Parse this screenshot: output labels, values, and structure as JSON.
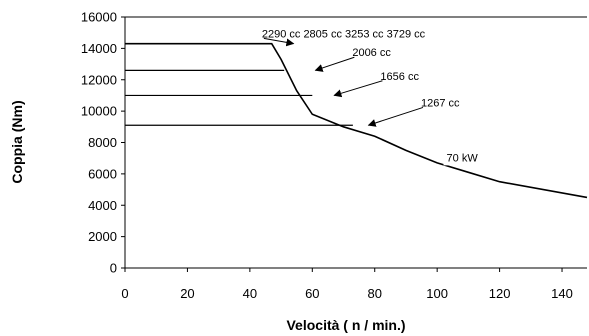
{
  "chart_data": {
    "type": "line",
    "title": "",
    "xlabel": "Velocità ( n / min.)",
    "ylabel": "Coppia (Nm)",
    "xlim": [
      0,
      148
    ],
    "ylim": [
      0,
      16000
    ],
    "xticks": [
      0,
      20,
      40,
      60,
      80,
      100,
      120,
      140
    ],
    "xtick_labels": [
      "0",
      "20",
      "40",
      "60",
      "80",
      "100",
      "120",
      "140"
    ],
    "yticks": [
      0,
      2000,
      4000,
      6000,
      8000,
      10000,
      12000,
      14000,
      16000
    ],
    "ytick_labels": [
      "0",
      "2000",
      "4000",
      "6000",
      "8000",
      "10000",
      "12000",
      "14000",
      "16000"
    ],
    "grid": false,
    "legend": "none",
    "series": [
      {
        "values_xy": [
          [
            0,
            14300
          ],
          [
            47,
            14300
          ],
          [
            50,
            13300
          ],
          [
            55,
            11300
          ],
          [
            60,
            9800
          ],
          [
            70,
            9000
          ],
          [
            80,
            8400
          ],
          [
            90,
            7500
          ],
          [
            100,
            6700
          ],
          [
            110,
            6100
          ],
          [
            120,
            5500
          ],
          [
            148,
            4500
          ]
        ]
      },
      {
        "values_xy": [
          [
            0,
            12600
          ],
          [
            51,
            12600
          ]
        ]
      },
      {
        "values_xy": [
          [
            0,
            11000
          ],
          [
            60,
            11000
          ]
        ]
      },
      {
        "values_xy": [
          [
            0,
            9100
          ],
          [
            73,
            9100
          ]
        ]
      }
    ],
    "annotations": [
      {
        "text": "2290 cc  2805 cc  3253 cc  3729 cc",
        "x": 70,
        "y": 14700,
        "arrow_to": [
          54,
          14300
        ]
      },
      {
        "text": "2006 cc",
        "x": 79,
        "y": 13500,
        "arrow_to": [
          61,
          12600
        ]
      },
      {
        "text": "1656 cc",
        "x": 88,
        "y": 12000,
        "arrow_to": [
          67,
          11000
        ]
      },
      {
        "text": "1267 cc",
        "x": 101,
        "y": 10300,
        "arrow_to": [
          78,
          9100
        ]
      },
      {
        "text": "70 kW",
        "x": 108,
        "y": 6800
      }
    ]
  }
}
